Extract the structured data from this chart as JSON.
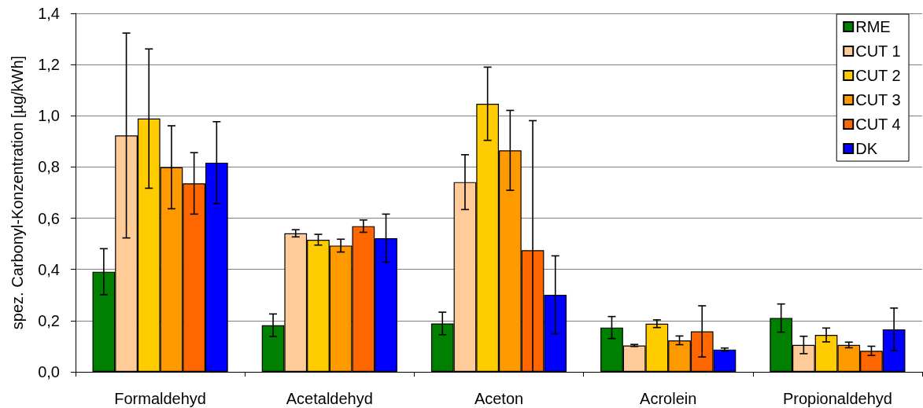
{
  "chart_data": {
    "type": "bar",
    "ylabel": "spez. Carbonyl-Konzentration [µg/kWh]",
    "categories": [
      "Formaldehyd",
      "Acetaldehyd",
      "Aceton",
      "Acrolein",
      "Propionaldehyd"
    ],
    "series": [
      {
        "name": "RME",
        "color": "#008000",
        "values": [
          0.391,
          0.182,
          0.189,
          0.173,
          0.21
        ],
        "errors": [
          0.09,
          0.044,
          0.044,
          0.043,
          0.055
        ]
      },
      {
        "name": "CUT 1",
        "color": "#ffcc99",
        "values": [
          0.923,
          0.541,
          0.741,
          0.103,
          0.105
        ],
        "errors": [
          0.4,
          0.014,
          0.107,
          0.004,
          0.034
        ]
      },
      {
        "name": "CUT 2",
        "color": "#ffcc00",
        "values": [
          0.989,
          0.516,
          1.047,
          0.188,
          0.144
        ],
        "errors": [
          0.272,
          0.021,
          0.143,
          0.015,
          0.027
        ]
      },
      {
        "name": "CUT 3",
        "color": "#ff9900",
        "values": [
          0.799,
          0.493,
          0.865,
          0.123,
          0.105
        ],
        "errors": [
          0.162,
          0.025,
          0.156,
          0.017,
          0.011
        ]
      },
      {
        "name": "CUT 4",
        "color": "#ff6600",
        "values": [
          0.736,
          0.569,
          0.475,
          0.158,
          0.082
        ],
        "errors": [
          0.12,
          0.024,
          [
            0,
            0.981
          ],
          0.1,
          0.018
        ]
      },
      {
        "name": "DK",
        "color": "#0000ff",
        "values": [
          0.817,
          0.522,
          0.301,
          0.087,
          0.166
        ],
        "errors": [
          0.16,
          0.094,
          0.152,
          0.006,
          0.083
        ]
      }
    ],
    "ylim": [
      0,
      1.4
    ],
    "yticks": [
      {
        "value": 0,
        "label": "0,0"
      },
      {
        "value": 0.2,
        "label": "0,2"
      },
      {
        "value": 0.4,
        "label": "0,4"
      },
      {
        "value": 0.6,
        "label": "0,6"
      },
      {
        "value": 0.8,
        "label": "0,8"
      },
      {
        "value": 1,
        "label": "1,0"
      },
      {
        "value": 1.2,
        "label": "1,2"
      },
      {
        "value": 1.4,
        "label": "1,4"
      }
    ],
    "grid": "y",
    "legend": "top right"
  }
}
